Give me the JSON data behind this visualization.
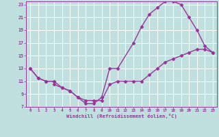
{
  "xlabel": "Windchill (Refroidissement éolien,°C)",
  "line_color": "#993399",
  "bg_color": "#c0e0e0",
  "grid_color": "#ffffff",
  "xlim": [
    -0.5,
    23.5
  ],
  "ylim": [
    7,
    23.5
  ],
  "xticks": [
    0,
    1,
    2,
    3,
    4,
    5,
    6,
    7,
    8,
    9,
    10,
    11,
    12,
    13,
    14,
    15,
    16,
    17,
    18,
    19,
    20,
    21,
    22,
    23
  ],
  "yticks": [
    7,
    9,
    11,
    13,
    15,
    17,
    19,
    21,
    23
  ],
  "curve1_x": [
    0,
    1,
    2,
    3,
    4,
    5,
    6,
    7,
    8,
    9,
    10,
    11,
    13,
    14,
    15,
    16,
    17,
    18,
    19,
    20,
    21,
    22,
    23
  ],
  "curve1_y": [
    13,
    11.5,
    11,
    11,
    10.0,
    9.5,
    8.5,
    7.5,
    7.5,
    8.5,
    13,
    13,
    17,
    19.5,
    21.5,
    22.5,
    23.5,
    23.5,
    23,
    21,
    19,
    16.5,
    15.5
  ],
  "curve2_x": [
    0,
    1,
    2,
    3,
    3,
    4,
    5,
    6,
    7,
    8,
    9,
    10,
    11,
    12,
    13,
    14,
    15,
    16,
    17,
    18,
    19,
    20,
    21,
    22,
    23
  ],
  "curve2_y": [
    13,
    11.5,
    11,
    11,
    10.5,
    10.0,
    9.5,
    8.5,
    8.0,
    8.0,
    8.0,
    10.5,
    11.0,
    11.0,
    11.0,
    11.0,
    12.0,
    13.0,
    14.0,
    14.5,
    15.0,
    15.5,
    16.0,
    16.0,
    15.5
  ],
  "marker": "D",
  "marker_size": 2.5,
  "line_width": 1.0
}
